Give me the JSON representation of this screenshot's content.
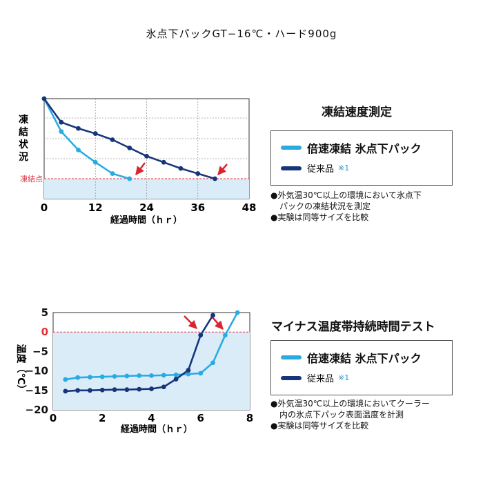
{
  "page_title": "氷点下パックGT−16℃・ハード900g",
  "colors": {
    "fast": "#29abe2",
    "conventional": "#17367a",
    "plot_fill": "#d9ecf8",
    "ref_line": "#e0303a",
    "arrow": "#d9252f"
  },
  "chart_data": [
    {
      "type": "line",
      "title": "凍結速度測定",
      "xlabel": "経過時間（ｈｒ）",
      "ylabel": "凍結状況",
      "xlim": [
        0,
        48
      ],
      "x_ticks": [
        "0",
        "12",
        "24",
        "36",
        "48"
      ],
      "y_ref_label": "凍結点",
      "grid": true,
      "legend_position": "right",
      "series": [
        {
          "name": "倍速凍結 氷点下パック",
          "x": [
            0,
            4,
            8,
            12,
            16,
            20
          ],
          "y": [
            100,
            68,
            50,
            38,
            27,
            22
          ]
        },
        {
          "name": "従来品",
          "note": "※1",
          "x": [
            0,
            4,
            8,
            12,
            16,
            20,
            24,
            28,
            32,
            36,
            40
          ],
          "y": [
            100,
            77,
            71,
            66,
            60,
            52,
            44,
            38,
            32,
            27,
            22
          ]
        }
      ],
      "notes": [
        "●外気温30℃以上の環境において氷点下",
        "パックの凍結状況を測定",
        "●実験は同等サイズを比較"
      ]
    },
    {
      "type": "line",
      "title": "マイナス温度帯持続時間テスト",
      "xlabel": "経過時間（ｈｒ）",
      "ylabel": "温度（℃）",
      "xlim": [
        0,
        8
      ],
      "ylim": [
        -20,
        5
      ],
      "x_ticks": [
        "0",
        "2",
        "4",
        "6",
        "8"
      ],
      "y_ticks": [
        "5",
        "0",
        "−5",
        "−10",
        "−15",
        "−20"
      ],
      "grid": false,
      "legend_position": "right",
      "series": [
        {
          "name": "倍速凍結 氷点下パック",
          "x": [
            0.5,
            1,
            1.5,
            2,
            2.5,
            3,
            3.5,
            4,
            4.5,
            5,
            5.5,
            6,
            6.5,
            7,
            7.5
          ],
          "y": [
            -12.2,
            -11.7,
            -11.6,
            -11.5,
            -11.4,
            -11.3,
            -11.2,
            -11.2,
            -11.1,
            -11.0,
            -10.8,
            -10.6,
            -7.9,
            -0.8,
            5.0
          ]
        },
        {
          "name": "従来品",
          "note": "※1",
          "x": [
            0.5,
            1,
            1.5,
            2,
            2.5,
            3,
            3.5,
            4,
            4.5,
            5,
            5.5,
            6,
            6.5
          ],
          "y": [
            -15.2,
            -15.0,
            -15.0,
            -14.9,
            -14.8,
            -14.8,
            -14.7,
            -14.6,
            -14.1,
            -12.1,
            -9.8,
            -0.8,
            4.3
          ]
        }
      ],
      "notes": [
        "●外気温30℃以上の環境においてクーラー",
        "内の氷点下パック表面温度を計測",
        "●実験は同等サイズを比較"
      ]
    }
  ]
}
